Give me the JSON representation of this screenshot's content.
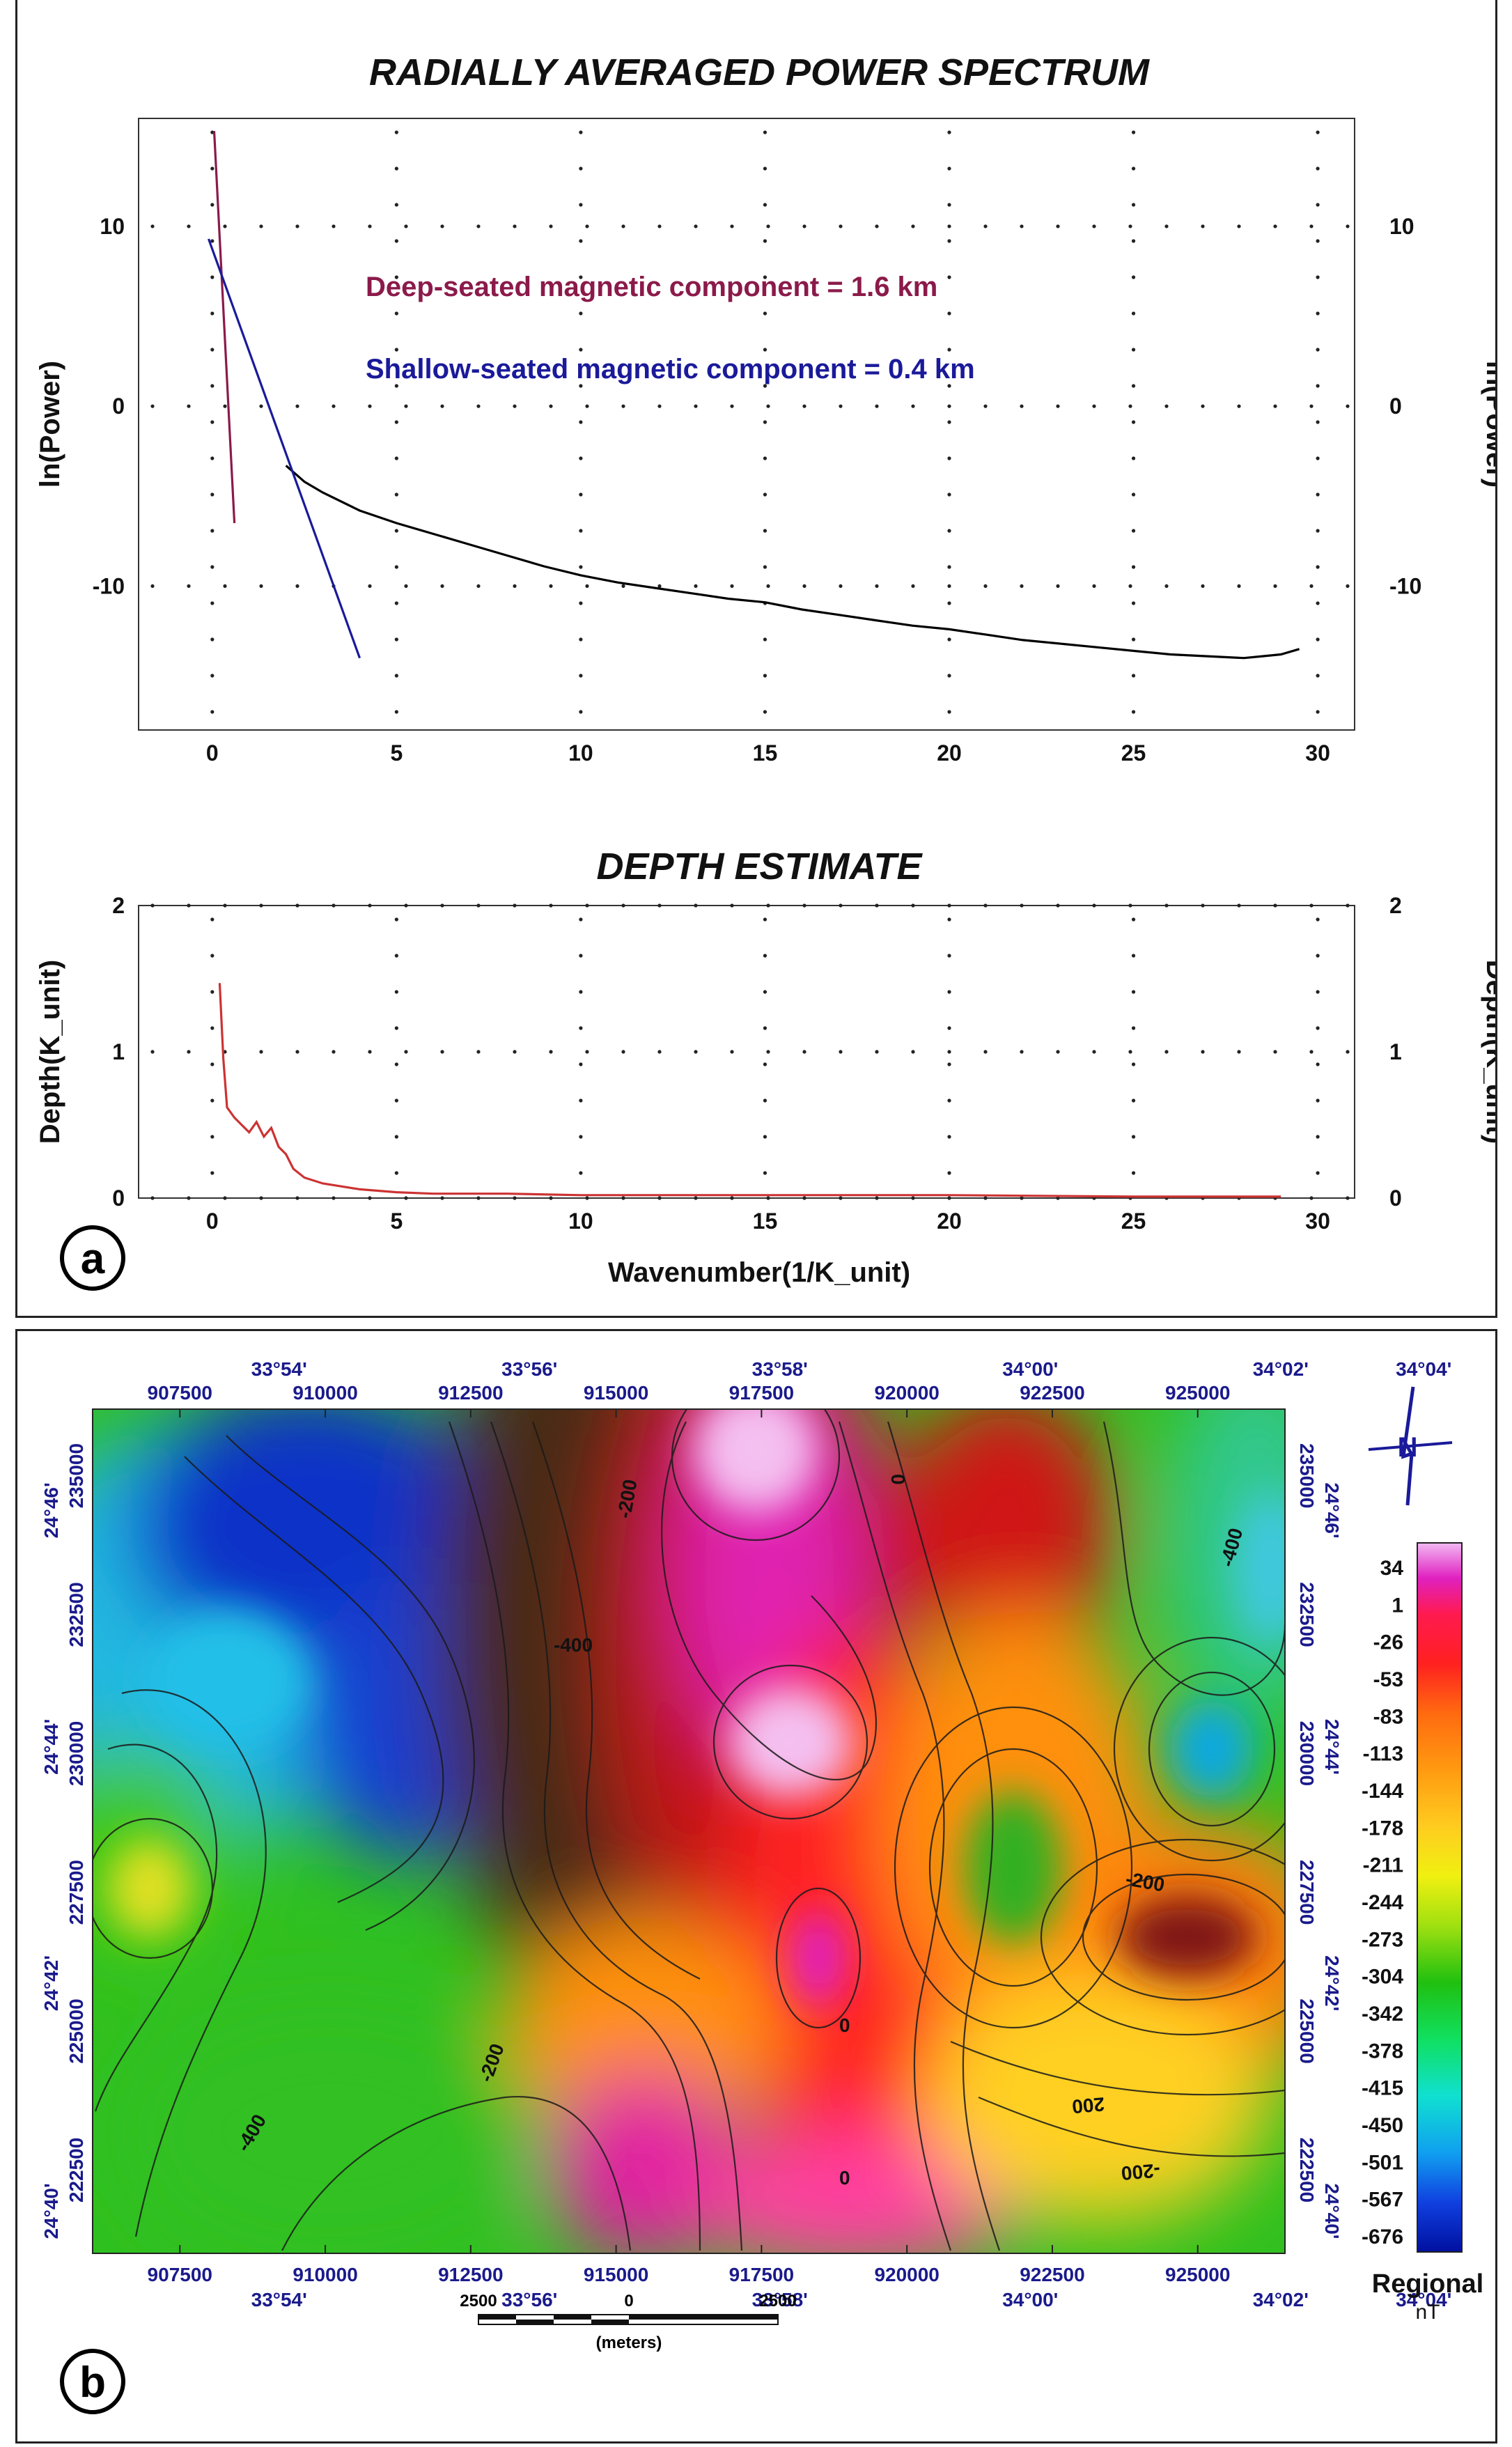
{
  "chart_data": [
    {
      "type": "line",
      "title": "RADIALLY AVERAGED POWER SPECTRUM",
      "xlabel": "",
      "ylabel": "ln(Power)",
      "ylabel_right": "ln(Power)",
      "xlim": [
        -2,
        31
      ],
      "ylim": [
        -18,
        16
      ],
      "x_ticks": [
        "0",
        "5",
        "10",
        "15",
        "20",
        "25",
        "30"
      ],
      "y_ticks": [
        "10",
        "0",
        "-10"
      ],
      "annotations": [
        {
          "text": "Deep-seated magnetic component = 1.6 km",
          "color": "#8b1a4a"
        },
        {
          "text": "Shallow-seated magnetic component = 0.4 km",
          "color": "#1a1a9a"
        }
      ],
      "series": [
        {
          "color": "#000000",
          "x": [
            2,
            2.5,
            3,
            4,
            5,
            6,
            7,
            8,
            9,
            10,
            11,
            12,
            13,
            14,
            15,
            16,
            17,
            18,
            19,
            20,
            21,
            22,
            23,
            24,
            25,
            26,
            27,
            28,
            28.5,
            29,
            29.5
          ],
          "y": [
            -3.3,
            -4.2,
            -4.8,
            -5.8,
            -6.5,
            -7.1,
            -7.7,
            -8.3,
            -8.9,
            -9.4,
            -9.8,
            -10.1,
            -10.4,
            -10.7,
            -10.9,
            -11.3,
            -11.6,
            -11.9,
            -12.2,
            -12.4,
            -12.7,
            -13.0,
            -13.2,
            -13.4,
            -13.6,
            -13.8,
            -13.9,
            -14.0,
            -13.9,
            -13.8,
            -13.5
          ]
        },
        {
          "color": "#8b1a4a",
          "x": [
            0.05,
            0.6
          ],
          "y": [
            15.3,
            -6.5
          ]
        },
        {
          "color": "#1a1a9a",
          "x": [
            -0.1,
            4.0
          ],
          "y": [
            9.3,
            -14.0
          ]
        }
      ]
    },
    {
      "type": "line",
      "title": "DEPTH ESTIMATE",
      "xlabel": "Wavenumber(1/K_unit)",
      "ylabel": "Depth(K_unit)",
      "ylabel_right": "Depth(K_unit)",
      "xlim": [
        -2,
        31
      ],
      "ylim": [
        0,
        2
      ],
      "x_ticks": [
        "0",
        "5",
        "10",
        "15",
        "20",
        "25",
        "30"
      ],
      "y_ticks": [
        "2",
        "1",
        "0"
      ],
      "series": [
        {
          "color": "#cc3333",
          "x": [
            0.2,
            0.3,
            0.4,
            0.6,
            0.8,
            1.0,
            1.2,
            1.4,
            1.6,
            1.8,
            2.0,
            2.2,
            2.5,
            3.0,
            3.5,
            4.0,
            5.0,
            6.0,
            8.0,
            10.0,
            15.0,
            20.0,
            25.0,
            29.0
          ],
          "y": [
            1.47,
            0.95,
            0.62,
            0.55,
            0.5,
            0.45,
            0.52,
            0.42,
            0.48,
            0.35,
            0.3,
            0.2,
            0.14,
            0.1,
            0.08,
            0.06,
            0.04,
            0.03,
            0.03,
            0.02,
            0.02,
            0.02,
            0.01,
            0.01
          ]
        }
      ]
    },
    {
      "type": "heatmap",
      "x_top_ticks": [
        "907500",
        "910000",
        "912500",
        "915000",
        "917500",
        "920000",
        "922500",
        "925000"
      ],
      "x_top_deg": [
        "33°54'",
        "33°56'",
        "33°58'",
        "34°00'",
        "34°02'",
        "34°04'"
      ],
      "x_bottom_ticks": [
        "907500",
        "910000",
        "912500",
        "915000",
        "917500",
        "920000",
        "922500",
        "925000"
      ],
      "x_bottom_deg": [
        "33°54'",
        "33°56'",
        "33°58'",
        "34°00'",
        "34°02'",
        "34°04'"
      ],
      "y_ticks": [
        "235000",
        "232500",
        "230000",
        "227500",
        "225000",
        "222500"
      ],
      "y_deg": [
        "24°46'",
        "24°44'",
        "24°42'",
        "24°40'"
      ],
      "contour_labels": [
        "-400",
        "-400",
        "-200",
        "0",
        "0",
        "-200",
        "200",
        "-200",
        "-400",
        "-200",
        "0"
      ],
      "colorbar": {
        "title": "Regional",
        "unit": "nT",
        "labels": [
          "34",
          "1",
          "-26",
          "-53",
          "-83",
          "-113",
          "-144",
          "-178",
          "-211",
          "-244",
          "-273",
          "-304",
          "-342",
          "-378",
          "-415",
          "-450",
          "-501",
          "-567",
          "-676"
        ]
      },
      "scale_bar": {
        "labels": [
          "2500",
          "0",
          "2500"
        ],
        "unit": "(meters)"
      }
    }
  ],
  "panel_labels": {
    "a": "a",
    "b": "b"
  },
  "north_label": "N"
}
